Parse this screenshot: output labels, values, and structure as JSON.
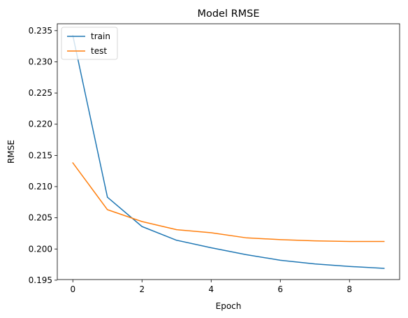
{
  "chart_data": {
    "type": "line",
    "title": "Model RMSE",
    "xlabel": "Epoch",
    "ylabel": "RMSE",
    "x": [
      0,
      1,
      2,
      3,
      4,
      5,
      6,
      7,
      8,
      9
    ],
    "series": [
      {
        "name": "train",
        "color": "#1f77b4",
        "values": [
          0.2342,
          0.2083,
          0.2036,
          0.2014,
          0.2002,
          0.1991,
          0.1982,
          0.1976,
          0.1972,
          0.1969
        ]
      },
      {
        "name": "test",
        "color": "#ff7f0e",
        "values": [
          0.2138,
          0.2063,
          0.2044,
          0.2031,
          0.2026,
          0.2018,
          0.2015,
          0.2013,
          0.2012,
          0.2012
        ]
      }
    ],
    "xlim": [
      -0.45,
      9.45
    ],
    "ylim": [
      0.1951,
      0.2361
    ],
    "xticks": [
      0,
      2,
      4,
      6,
      8
    ],
    "xtick_labels": [
      "0",
      "2",
      "4",
      "6",
      "8"
    ],
    "yticks": [
      0.195,
      0.2,
      0.205,
      0.21,
      0.215,
      0.22,
      0.225,
      0.23,
      0.235
    ],
    "ytick_labels": [
      "0.195",
      "0.200",
      "0.205",
      "0.210",
      "0.215",
      "0.220",
      "0.225",
      "0.230",
      "0.235"
    ],
    "grid": false,
    "legend_position": "upper left"
  }
}
